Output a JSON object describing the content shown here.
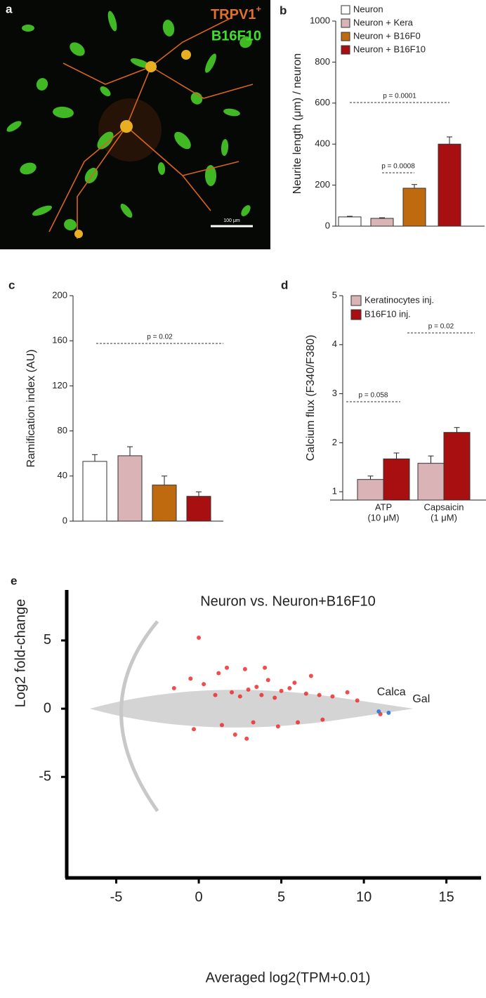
{
  "chart_data": [
    {
      "type": "image",
      "panel_label": "a",
      "title": "TRPV1",
      "title_superscript": "+",
      "subtitle": "B16F10",
      "scale_label": "100 μm"
    },
    {
      "type": "bar",
      "panel_label": "b",
      "y_label": "Neurite length (μm) / neuron",
      "categories": [
        "Neuron",
        "Neuron + Kera",
        "Neuron + B16F0",
        "Neuron + B16F10"
      ],
      "values": [
        45,
        38,
        185,
        400
      ],
      "errors": [
        3,
        3,
        18,
        35
      ],
      "colors": [
        "#ffffff",
        "#d9b3b5",
        "#c06a10",
        "#a80f10"
      ],
      "ylim": [
        0,
        1000
      ],
      "yticks": [
        0,
        200,
        400,
        600,
        800,
        1000
      ],
      "legend": "top-left",
      "annotations": [
        "p = 0.0001",
        "p = 0.0008"
      ]
    },
    {
      "type": "bar",
      "panel_label": "c",
      "y_label": "Ramification index (AU)",
      "categories": [
        null,
        null,
        null,
        null
      ],
      "values": [
        53,
        58,
        32,
        22
      ],
      "errors": [
        6,
        8,
        8,
        4
      ],
      "colors": [
        "#ffffff",
        "#d9b3b5",
        "#c06a10",
        "#a80f10"
      ],
      "ylim": [
        0,
        200
      ],
      "yticks": [
        0,
        40,
        80,
        120,
        160,
        200
      ],
      "annotations": [
        "p = 0.02"
      ]
    },
    {
      "type": "grouped_bar",
      "panel_label": "d",
      "y_label": "Calcium flux (F340/F380)",
      "categories": [
        "ATP",
        "Capsaicin"
      ],
      "category_sublabels": [
        "(10 μM)",
        "(1 μM)"
      ],
      "series": [
        {
          "name": "Keratinocytes inj.",
          "color": "#d9b3b5",
          "values": [
            1.25,
            1.58
          ],
          "errors": [
            0.07,
            0.15
          ]
        },
        {
          "name": "B16F10 inj.",
          "color": "#a80f10",
          "values": [
            1.67,
            2.21
          ],
          "errors": [
            0.12,
            0.1
          ]
        }
      ],
      "ylim": [
        0.83,
        5
      ],
      "yticks": [
        1,
        2,
        3,
        4,
        5
      ],
      "legend": "top-left",
      "annotations": [
        "p = 0.058",
        "p = 0.02"
      ]
    },
    {
      "type": "scatter",
      "panel_label": "e",
      "title": "Neuron vs. Neuron+B16F10",
      "x_label": "Averaged log2(TPM+0.01)",
      "y_label": "Log2 fold-change",
      "xlim": [
        -8,
        17.1
      ],
      "ylim": [
        -12.4,
        8.7
      ],
      "xticks": [
        -5,
        0,
        5,
        10,
        15
      ],
      "yticks": [
        -5,
        0,
        5
      ],
      "series": [
        {
          "color": "#ee2020",
          "x": [
            -1.5,
            -0.5,
            0.3,
            1.2,
            2.0,
            2.8,
            3.5,
            4.2,
            5.0,
            5.8,
            6.5,
            7.3,
            8.1,
            9.0,
            1.0,
            2.5,
            3.8,
            4.6,
            0.0,
            1.7,
            3.0,
            4.0,
            5.5,
            6.8,
            -0.3,
            1.4,
            2.2,
            3.3,
            4.8,
            6.0,
            7.5,
            2.9,
            9.6,
            11.0
          ],
          "y": [
            1.5,
            2.2,
            1.8,
            2.6,
            1.2,
            2.9,
            1.6,
            2.1,
            1.3,
            1.9,
            1.1,
            1.0,
            0.9,
            1.2,
            1.0,
            0.9,
            1.0,
            0.8,
            5.2,
            3.0,
            1.4,
            3.0,
            1.5,
            2.4,
            -1.5,
            -1.2,
            -1.9,
            -1.0,
            -1.3,
            -1.0,
            -0.8,
            -2.2,
            0.6,
            -0.4
          ]
        }
      ],
      "annotations": [
        {
          "text": "Calca",
          "x": 10.9,
          "y": -0.2,
          "color": "#3a7fd8"
        },
        {
          "text": "Gal",
          "x": 11.5,
          "y": -0.3,
          "color": "#3a7fd8"
        }
      ]
    }
  ]
}
